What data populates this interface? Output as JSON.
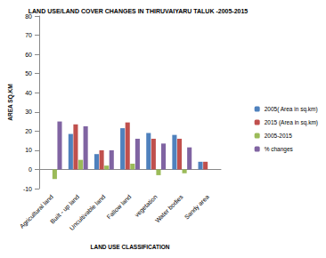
{
  "chart_data": {
    "type": "bar",
    "title": "LAND USE/LAND COVER CHANGES IN THIRUVAIYARU TALUK -2005-2015",
    "x_label": "LAND USE CLASSIFICATION",
    "y_label": "AREA SQ.KM",
    "categories": [
      "Agricultural land",
      "Built - up land",
      "Uncultivable land",
      "Fallow land",
      "vegetation",
      "Water bodies",
      "Sandy area"
    ],
    "series": [
      {
        "name": "2005( Area in sq.km)",
        "color": "#4F81BD",
        "values": [
          null,
          18.5,
          8,
          21.5,
          19,
          18,
          4
        ]
      },
      {
        "name": "2015 (Area in sq.km)",
        "color": "#C0504D",
        "values": [
          null,
          23.5,
          10,
          24.5,
          16,
          16,
          4
        ]
      },
      {
        "name": "2005-2015",
        "color": "#9BBB59",
        "values": [
          -5,
          5,
          2,
          3,
          -3,
          -2,
          0
        ]
      },
      {
        "name": "% changes",
        "color": "#8064A2",
        "values": [
          25,
          22.5,
          10,
          16,
          13.5,
          11.5,
          null
        ]
      }
    ],
    "ylim": [
      -10,
      80
    ],
    "yticks": [
      -10,
      0,
      10,
      20,
      30,
      40,
      50,
      60,
      70,
      80
    ],
    "grid": false,
    "legend": "right"
  }
}
